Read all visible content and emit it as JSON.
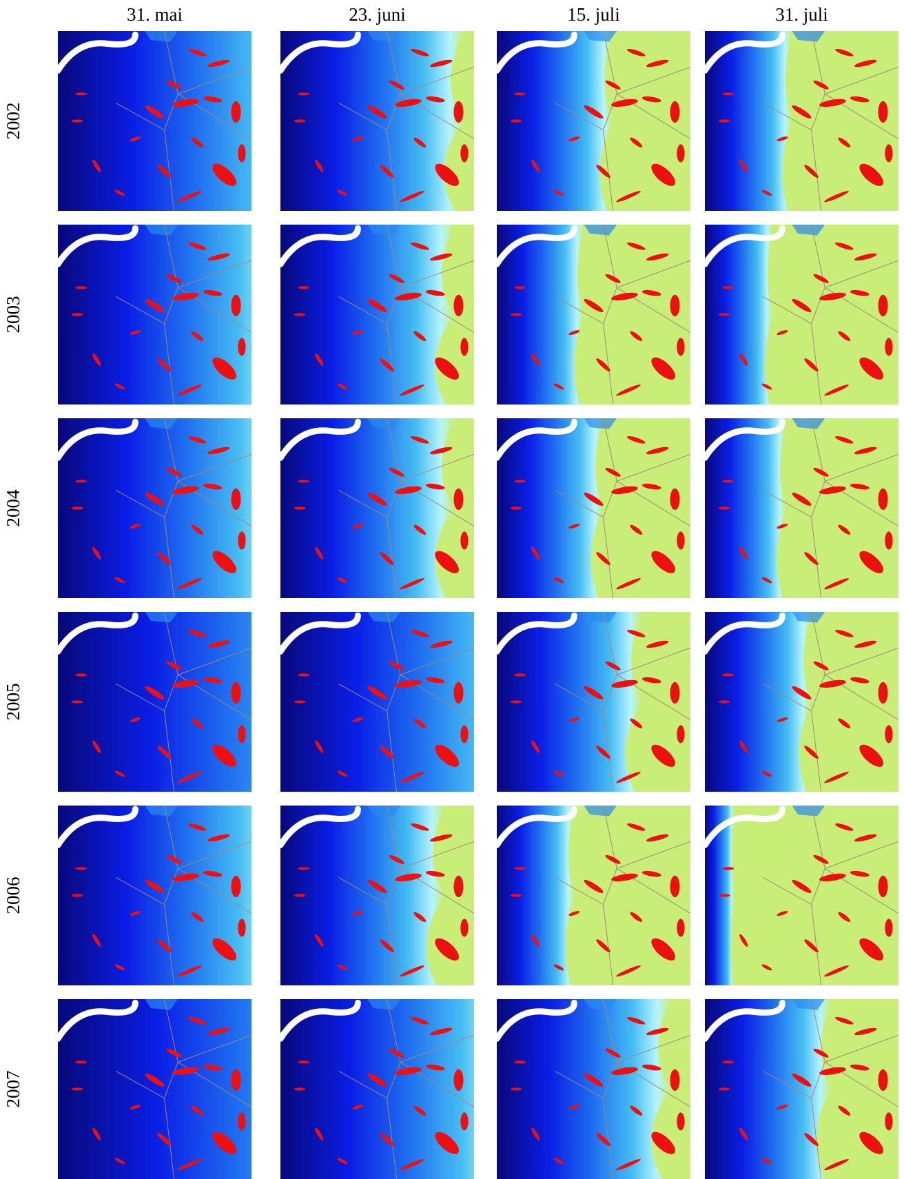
{
  "columns": [
    "31. mai",
    "23. juni",
    "15. juli",
    "31. juli"
  ],
  "rows": [
    "2002",
    "2003",
    "2004",
    "2005",
    "2006",
    "2007"
  ]
}
